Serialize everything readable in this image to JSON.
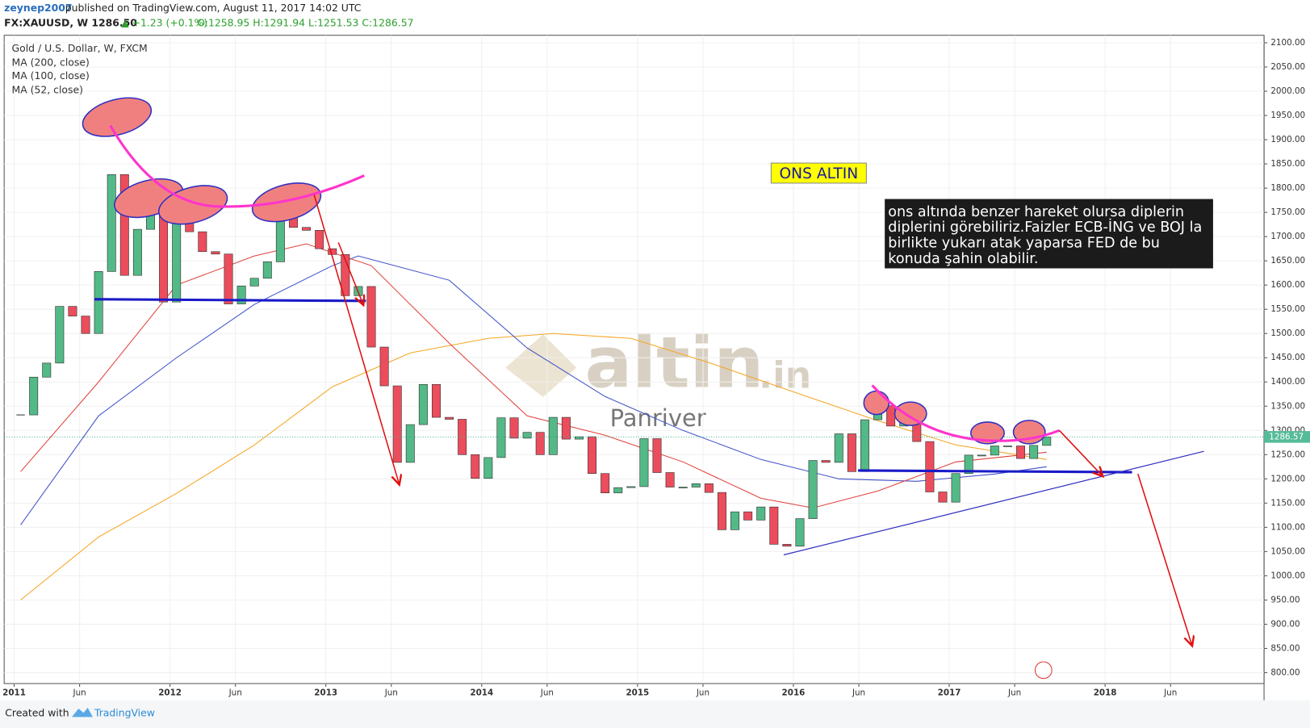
{
  "header": {
    "author": "zeynep2007",
    "published": "published on TradingView.com, August 11, 2017 14:02 UTC",
    "symbol": "FX:XAUUSD, W  1286.50",
    "change": "▲ +1.23 (+0.1%)",
    "ohlc": "O:1258.95 H:1291.94 L:1251.53 C:1286.57"
  },
  "footer": {
    "created": "Created with",
    "brand": "TradingView"
  },
  "chart_data": {
    "type": "candlestick",
    "legend": [
      "Gold / U.S. Dollar, W, FXCM",
      "MA (200, close)",
      "MA (100, close)",
      "MA (52, close)"
    ],
    "annotations": {
      "box": "ONS ALTIN",
      "note": [
        "ons altında benzer hareket olursa diplerin",
        "diplerini görebiliriz.Faizler ECB-İNG ve BOJ la",
        "birlikte yukarı atak yaparsa FED de bu",
        "konuda şahin olabilir."
      ],
      "watermark": "altin",
      ".in": ".in",
      "watermark_sub": "Panriver",
      "last_price": "1286.57"
    },
    "x": [
      "2011-01",
      "2011-02",
      "2011-03",
      "2011-04",
      "2011-05",
      "2011-06",
      "2011-07",
      "2011-08",
      "2011-09",
      "2011-10",
      "2011-11",
      "2011-12",
      "2012-01",
      "2012-02",
      "2012-03",
      "2012-04",
      "2012-05",
      "2012-06",
      "2012-07",
      "2012-08",
      "2012-09",
      "2012-10",
      "2012-11",
      "2012-12",
      "2013-01",
      "2013-02",
      "2013-03",
      "2013-04",
      "2013-05",
      "2013-06",
      "2013-07",
      "2013-08",
      "2013-09",
      "2013-10",
      "2013-11",
      "2013-12",
      "2014-01",
      "2014-02",
      "2014-03",
      "2014-04",
      "2014-05",
      "2014-06",
      "2014-07",
      "2014-08",
      "2014-09",
      "2014-10",
      "2014-11",
      "2014-12",
      "2015-01",
      "2015-02",
      "2015-03",
      "2015-04",
      "2015-05",
      "2015-06",
      "2015-07",
      "2015-08",
      "2015-09",
      "2015-10",
      "2015-11",
      "2015-12",
      "2016-01",
      "2016-02",
      "2016-03",
      "2016-04",
      "2016-05",
      "2016-06",
      "2016-07",
      "2016-08",
      "2016-09",
      "2016-10",
      "2016-11",
      "2016-12",
      "2017-01",
      "2017-02",
      "2017-03",
      "2017-04",
      "2017-05",
      "2017-06",
      "2017-07",
      "2017-08"
    ],
    "values": [
      1332,
      1410,
      1439,
      1556,
      1536,
      1500,
      1628,
      1828,
      1620,
      1715,
      1746,
      1565,
      1737,
      1710,
      1669,
      1664,
      1561,
      1598,
      1614,
      1648,
      1772,
      1719,
      1713,
      1675,
      1663,
      1578,
      1597,
      1472,
      1392,
      1234,
      1312,
      1395,
      1327,
      1323,
      1250,
      1201,
      1244,
      1326,
      1284,
      1296,
      1250,
      1327,
      1282,
      1287,
      1211,
      1171,
      1182,
      1184,
      1283,
      1213,
      1183,
      1183,
      1190,
      1172,
      1095,
      1132,
      1115,
      1142,
      1065,
      1061,
      1118,
      1238,
      1234,
      1293,
      1215,
      1322,
      1351,
      1309,
      1316,
      1277,
      1173,
      1152,
      1211,
      1249,
      1249,
      1268,
      1268,
      1242,
      1269,
      1286.57
    ],
    "up_color": "#53b987",
    "down_color": "#eb4d5c",
    "series": [
      {
        "name": "MA (200, close)",
        "color": "#f5a623",
        "x": [
          "2011-01",
          "2011-07",
          "2012-01",
          "2012-07",
          "2013-01",
          "2013-07",
          "2014-01",
          "2014-06",
          "2014-12",
          "2015-06",
          "2016-01",
          "2016-07",
          "2017-01",
          "2017-08"
        ],
        "values": [
          950,
          1080,
          1170,
          1270,
          1390,
          1460,
          1490,
          1500,
          1490,
          1440,
          1375,
          1320,
          1270,
          1240
        ]
      },
      {
        "name": "MA (100, close)",
        "color": "#3f51c7",
        "x": [
          "2011-01",
          "2011-07",
          "2012-01",
          "2012-07",
          "2013-01",
          "2013-03",
          "2013-10",
          "2014-04",
          "2014-10",
          "2015-04",
          "2015-10",
          "2016-04",
          "2016-10",
          "2017-04",
          "2017-08"
        ],
        "values": [
          1105,
          1330,
          1450,
          1560,
          1640,
          1660,
          1610,
          1470,
          1370,
          1300,
          1240,
          1200,
          1195,
          1210,
          1225
        ]
      },
      {
        "name": "MA (52, close)",
        "color": "#e0403a",
        "x": [
          "2011-01",
          "2011-07",
          "2012-01",
          "2012-07",
          "2012-11",
          "2013-04",
          "2013-10",
          "2014-04",
          "2014-10",
          "2015-04",
          "2015-10",
          "2016-02",
          "2016-07",
          "2017-01",
          "2017-08"
        ],
        "values": [
          1215,
          1400,
          1600,
          1660,
          1685,
          1640,
          1480,
          1330,
          1290,
          1235,
          1160,
          1140,
          1175,
          1235,
          1255
        ]
      }
    ],
    "xlim": [
      2010.936,
      2019.02
    ],
    "xticks": [
      {
        "value": 2011,
        "label": "2011"
      },
      {
        "value": 2011.42,
        "label": "Jun"
      },
      {
        "value": 2012,
        "label": "2012"
      },
      {
        "value": 2012.42,
        "label": "Jun"
      },
      {
        "value": 2013,
        "label": "2013"
      },
      {
        "value": 2013.42,
        "label": "Jun"
      },
      {
        "value": 2014,
        "label": "2014"
      },
      {
        "value": 2014.42,
        "label": "Jun"
      },
      {
        "value": 2015,
        "label": "2015"
      },
      {
        "value": 2015.42,
        "label": "Jun"
      },
      {
        "value": 2016,
        "label": "2016"
      },
      {
        "value": 2016.42,
        "label": "Jun"
      },
      {
        "value": 2017,
        "label": "2017"
      },
      {
        "value": 2017.42,
        "label": "Jun"
      },
      {
        "value": 2018,
        "label": "2018"
      },
      {
        "value": 2018.42,
        "label": "Jun"
      }
    ],
    "ylim": [
      777.6,
      2115.5
    ],
    "yticks": [
      {
        "value": 800,
        "label": "800.00"
      },
      {
        "value": 850,
        "label": "850.00"
      },
      {
        "value": 900,
        "label": "900.00"
      },
      {
        "value": 950,
        "label": "950.00"
      },
      {
        "value": 1000,
        "label": "1000.00"
      },
      {
        "value": 1050,
        "label": "1050.00"
      },
      {
        "value": 1100,
        "label": "1100.00"
      },
      {
        "value": 1150,
        "label": "1150.00"
      },
      {
        "value": 1200,
        "label": "1200.00"
      },
      {
        "value": 1250,
        "label": "1250.00"
      },
      {
        "value": 1300,
        "label": "1300.00"
      },
      {
        "value": 1350,
        "label": "1350.00"
      },
      {
        "value": 1400,
        "label": "1400.00"
      },
      {
        "value": 1450,
        "label": "1450.00"
      },
      {
        "value": 1500,
        "label": "1500.00"
      },
      {
        "value": 1550,
        "label": "1550.00"
      },
      {
        "value": 1600,
        "label": "1600.00"
      },
      {
        "value": 1650,
        "label": "1650.00"
      },
      {
        "value": 1700,
        "label": "1700.00"
      },
      {
        "value": 1750,
        "label": "1750.00"
      },
      {
        "value": 1800,
        "label": "1800.00"
      },
      {
        "value": 1850,
        "label": "1850.00"
      },
      {
        "value": 1900,
        "label": "1900.00"
      },
      {
        "value": 1950,
        "label": "1950.00"
      },
      {
        "value": 2000,
        "label": "2000.00"
      },
      {
        "value": 2050,
        "label": "2050.00"
      },
      {
        "value": 2100,
        "label": "2100.00"
      }
    ]
  }
}
